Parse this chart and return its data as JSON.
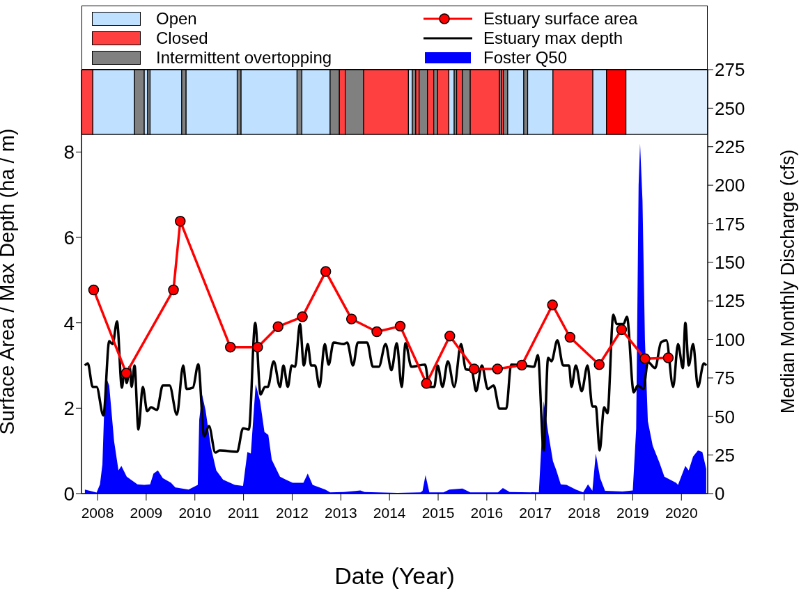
{
  "chart_data": {
    "type": "line",
    "xlabel": "Date (Year)",
    "ylabel": "Surface Area / Max Depth (ha / m)",
    "y2label": "Median Monthly Discharge (cfs)",
    "xlim": [
      2007.67,
      2020.54
    ],
    "xticks": [
      2008,
      2009,
      2010,
      2011,
      2012,
      2013,
      2014,
      2015,
      2016,
      2017,
      2018,
      2019,
      2020
    ],
    "ylim": [
      0,
      9.93
    ],
    "yticks": [
      0,
      2,
      4,
      6,
      8
    ],
    "y2lim": [
      0,
      275
    ],
    "y2ticks": [
      0,
      25,
      50,
      75,
      100,
      125,
      150,
      175,
      200,
      225,
      250,
      275
    ],
    "legend": "top",
    "series": [
      {
        "name": "Foster Q50",
        "type": "area",
        "axis": "y2",
        "color": "#0000ff",
        "x": [
          2007.74,
          2007.98,
          2008.05,
          2008.1,
          2008.16,
          2008.24,
          2008.34,
          2008.43,
          2008.49,
          2008.6,
          2008.82,
          2008.96,
          2009.08,
          2009.15,
          2009.24,
          2009.34,
          2009.51,
          2009.6,
          2009.87,
          2010.06,
          2010.09,
          2010.15,
          2010.22,
          2010.33,
          2010.44,
          2010.58,
          2010.82,
          2010.99,
          2011.08,
          2011.15,
          2011.25,
          2011.34,
          2011.43,
          2011.51,
          2011.58,
          2011.75,
          2011.87,
          2012.01,
          2012.23,
          2012.32,
          2012.42,
          2012.68,
          2012.78,
          2013.06,
          2013.4,
          2013.49,
          2014.16,
          2014.64,
          2014.68,
          2014.74,
          2014.82,
          2015.11,
          2015.23,
          2015.5,
          2015.66,
          2016.23,
          2016.33,
          2016.47,
          2017.07,
          2017.17,
          2017.26,
          2017.36,
          2017.43,
          2017.52,
          2017.64,
          2017.83,
          2017.98,
          2018.08,
          2018.17,
          2018.24,
          2018.33,
          2018.43,
          2018.79,
          2019.0,
          2019.07,
          2019.12,
          2019.15,
          2019.2,
          2019.25,
          2019.31,
          2019.41,
          2019.55,
          2019.65,
          2019.89,
          2019.93,
          2020.08,
          2020.15,
          2020.24,
          2020.34,
          2020.43,
          2020.51
        ],
        "values": [
          2.6,
          0.7,
          6,
          19,
          77,
          70,
          34,
          15,
          18,
          11,
          6,
          5.6,
          6,
          13,
          15,
          10,
          7,
          4,
          2.6,
          5.6,
          48,
          64,
          54,
          30,
          15,
          9,
          5.6,
          5,
          27,
          26,
          71,
          60,
          40,
          38,
          22,
          11,
          9,
          7,
          7,
          13,
          5.6,
          2.6,
          0.8,
          1,
          2,
          1,
          0.5,
          0.8,
          1.8,
          12,
          0.8,
          0.8,
          2.6,
          3.3,
          0.8,
          0.8,
          3.6,
          1,
          0.8,
          60,
          40,
          21,
          15,
          6,
          5.6,
          2.6,
          0.8,
          6,
          1.8,
          26,
          10,
          1.8,
          1.4,
          2,
          42,
          200,
          227,
          190,
          100,
          47,
          31,
          20,
          11,
          7,
          5.6,
          18,
          15,
          24,
          28,
          27,
          16
        ]
      },
      {
        "name": "Estuary max depth",
        "color": "#000000",
        "marker": "none",
        "x": [
          2007.74,
          2007.8,
          2007.9,
          2007.98,
          2008.12,
          2008.24,
          2008.31,
          2008.4,
          2008.5,
          2008.55,
          2008.6,
          2008.66,
          2008.7,
          2008.76,
          2008.84,
          2008.93,
          2009.02,
          2009.1,
          2009.22,
          2009.34,
          2009.48,
          2009.63,
          2009.76,
          2009.83,
          2009.96,
          2010.07,
          2010.19,
          2010.29,
          2010.42,
          2010.51,
          2010.87,
          2010.99,
          2011.11,
          2011.24,
          2011.35,
          2011.44,
          2011.5,
          2011.62,
          2011.75,
          2011.82,
          2011.91,
          2011.99,
          2012.06,
          2012.16,
          2012.24,
          2012.32,
          2012.39,
          2012.47,
          2012.56,
          2012.67,
          2012.75,
          2012.85,
          2013.06,
          2013.13,
          2013.25,
          2013.35,
          2013.54,
          2013.66,
          2013.78,
          2013.92,
          2014.04,
          2014.15,
          2014.25,
          2014.33,
          2014.45,
          2014.73,
          2014.82,
          2014.92,
          2014.99,
          2015.09,
          2015.2,
          2015.33,
          2015.47,
          2015.57,
          2015.69,
          2015.78,
          2015.9,
          2016.02,
          2016.14,
          2016.26,
          2016.4,
          2016.5,
          2016.76,
          2016.97,
          2017.05,
          2017.17,
          2017.26,
          2017.33,
          2017.45,
          2017.57,
          2017.69,
          2017.74,
          2017.83,
          2017.95,
          2018.07,
          2018.17,
          2018.24,
          2018.32,
          2018.41,
          2018.48,
          2018.6,
          2018.67,
          2018.74,
          2018.81,
          2018.88,
          2019.02,
          2019.1,
          2019.22,
          2019.31,
          2019.46,
          2019.58,
          2019.69,
          2019.83,
          2019.93,
          2020.03,
          2020.08,
          2020.15,
          2020.24,
          2020.34,
          2020.46,
          2020.51
        ],
        "values": [
          3.0,
          3.05,
          2.5,
          2.5,
          1.83,
          3.57,
          3.5,
          4.03,
          2.48,
          2.86,
          2.59,
          2.97,
          2.5,
          3.0,
          1.5,
          2.5,
          1.93,
          2.02,
          1.96,
          2.53,
          2.53,
          1.85,
          3.0,
          2.45,
          2.48,
          3.03,
          1.34,
          1.58,
          0.96,
          1.01,
          0.98,
          1.53,
          1.5,
          4.0,
          2.32,
          2.5,
          2.5,
          3.1,
          2.5,
          3.0,
          2.5,
          3.0,
          2.97,
          3.97,
          3.0,
          3.5,
          3.0,
          3.0,
          2.5,
          3.5,
          3.02,
          3.54,
          3.5,
          3.54,
          3.0,
          3.54,
          3.54,
          2.97,
          2.97,
          3.5,
          2.89,
          3.52,
          2.5,
          3.52,
          2.97,
          3.02,
          2.5,
          2.5,
          3.0,
          2.5,
          3.1,
          2.5,
          3.5,
          2.91,
          2.89,
          2.4,
          3.0,
          2.45,
          2.53,
          1.99,
          1.99,
          3.02,
          3.0,
          2.97,
          3.24,
          1.01,
          3.18,
          3.1,
          3.59,
          3.0,
          3.0,
          2.5,
          3.0,
          2.4,
          3.0,
          2.04,
          2.04,
          1.01,
          2.02,
          1.88,
          4.19,
          3.97,
          3.97,
          3.97,
          4.14,
          2.37,
          2.53,
          2.45,
          3.08,
          2.94,
          3.54,
          3.59,
          2.5,
          3.5,
          2.94,
          4.0,
          3.0,
          3.5,
          2.5,
          3.05,
          3.0
        ]
      },
      {
        "name": "Estuary surface area",
        "color": "#ff0000",
        "marker": "circle",
        "x": [
          2007.92,
          2008.59,
          2009.56,
          2009.7,
          2010.73,
          2011.29,
          2011.71,
          2012.21,
          2012.69,
          2013.22,
          2013.74,
          2014.22,
          2014.76,
          2015.24,
          2015.74,
          2016.22,
          2016.72,
          2017.35,
          2017.71,
          2018.31,
          2018.77,
          2019.25,
          2019.73
        ],
        "values": [
          4.77,
          2.82,
          4.77,
          6.38,
          3.43,
          3.43,
          3.91,
          4.14,
          5.2,
          4.09,
          3.79,
          3.92,
          2.58,
          3.69,
          2.92,
          2.92,
          3.01,
          4.42,
          3.66,
          3.02,
          3.84,
          3.16,
          3.18
        ]
      }
    ],
    "bands": [
      {
        "axis": "x",
        "from": 2007.9,
        "to": 2008.76,
        "label": "Open",
        "color": "#bfe0ff"
      },
      {
        "axis": "x",
        "from": 2007.67,
        "to": 2007.9,
        "label": "Closed",
        "color": "#ff4040"
      },
      {
        "axis": "x",
        "from": 2008.76,
        "to": 2008.96,
        "label": "Intermittent overtopping",
        "color": "#808080"
      },
      {
        "axis": "x",
        "from": 2008.96,
        "to": 2009.03,
        "color": "#bfe0ff"
      },
      {
        "axis": "x",
        "from": 2009.03,
        "to": 2009.08,
        "color": "#808080"
      },
      {
        "axis": "x",
        "from": 2009.08,
        "to": 2009.73,
        "color": "#bfe0ff"
      },
      {
        "axis": "x",
        "from": 2009.73,
        "to": 2009.82,
        "color": "#808080"
      },
      {
        "axis": "x",
        "from": 2009.82,
        "to": 2010.87,
        "color": "#bfe0ff"
      },
      {
        "axis": "x",
        "from": 2010.87,
        "to": 2010.95,
        "color": "#808080"
      },
      {
        "axis": "x",
        "from": 2010.95,
        "to": 2012.1,
        "color": "#bfe0ff"
      },
      {
        "axis": "x",
        "from": 2012.1,
        "to": 2012.2,
        "color": "#808080"
      },
      {
        "axis": "x",
        "from": 2012.2,
        "to": 2012.78,
        "color": "#bfe0ff"
      },
      {
        "axis": "x",
        "from": 2012.78,
        "to": 2012.97,
        "color": "#808080"
      },
      {
        "axis": "x",
        "from": 2012.97,
        "to": 2013.09,
        "color": "#ff4040"
      },
      {
        "axis": "x",
        "from": 2013.09,
        "to": 2013.47,
        "color": "#808080"
      },
      {
        "axis": "x",
        "from": 2013.47,
        "to": 2014.39,
        "color": "#ff4040"
      },
      {
        "axis": "x",
        "from": 2014.39,
        "to": 2014.47,
        "color": "#bfe0ff"
      },
      {
        "axis": "x",
        "from": 2014.47,
        "to": 2014.54,
        "color": "#808080"
      },
      {
        "axis": "x",
        "from": 2014.54,
        "to": 2014.61,
        "color": "#ff4040"
      },
      {
        "axis": "x",
        "from": 2014.61,
        "to": 2014.78,
        "color": "#808080"
      },
      {
        "axis": "x",
        "from": 2014.78,
        "to": 2014.91,
        "color": "#ff4040"
      },
      {
        "axis": "x",
        "from": 2014.91,
        "to": 2014.99,
        "color": "#808080"
      },
      {
        "axis": "x",
        "from": 2014.99,
        "to": 2015.22,
        "color": "#ff4040"
      },
      {
        "axis": "x",
        "from": 2015.22,
        "to": 2015.33,
        "color": "#bfe0ff"
      },
      {
        "axis": "x",
        "from": 2015.33,
        "to": 2015.38,
        "color": "#808080"
      },
      {
        "axis": "x",
        "from": 2015.38,
        "to": 2015.5,
        "color": "#ff4040"
      },
      {
        "axis": "x",
        "from": 2015.5,
        "to": 2015.66,
        "color": "#808080"
      },
      {
        "axis": "x",
        "from": 2015.66,
        "to": 2016.26,
        "color": "#ff4040"
      },
      {
        "axis": "x",
        "from": 2016.26,
        "to": 2016.3,
        "color": "#808080"
      },
      {
        "axis": "x",
        "from": 2016.3,
        "to": 2016.34,
        "color": "#ff4040"
      },
      {
        "axis": "x",
        "from": 2016.34,
        "to": 2016.43,
        "color": "#808080"
      },
      {
        "axis": "x",
        "from": 2016.43,
        "to": 2016.76,
        "color": "#bfe0ff"
      },
      {
        "axis": "x",
        "from": 2016.76,
        "to": 2016.84,
        "color": "#808080"
      },
      {
        "axis": "x",
        "from": 2016.84,
        "to": 2017.36,
        "color": "#bfe0ff"
      },
      {
        "axis": "x",
        "from": 2017.36,
        "to": 2018.18,
        "color": "#ff4040"
      },
      {
        "axis": "x",
        "from": 2018.18,
        "to": 2018.46,
        "color": "#bfe0ff"
      },
      {
        "axis": "x",
        "from": 2018.46,
        "to": 2018.86,
        "color": "#ff0000"
      },
      {
        "axis": "x",
        "from": 2018.86,
        "to": 2020.54,
        "color": "#deeeff"
      }
    ]
  }
}
